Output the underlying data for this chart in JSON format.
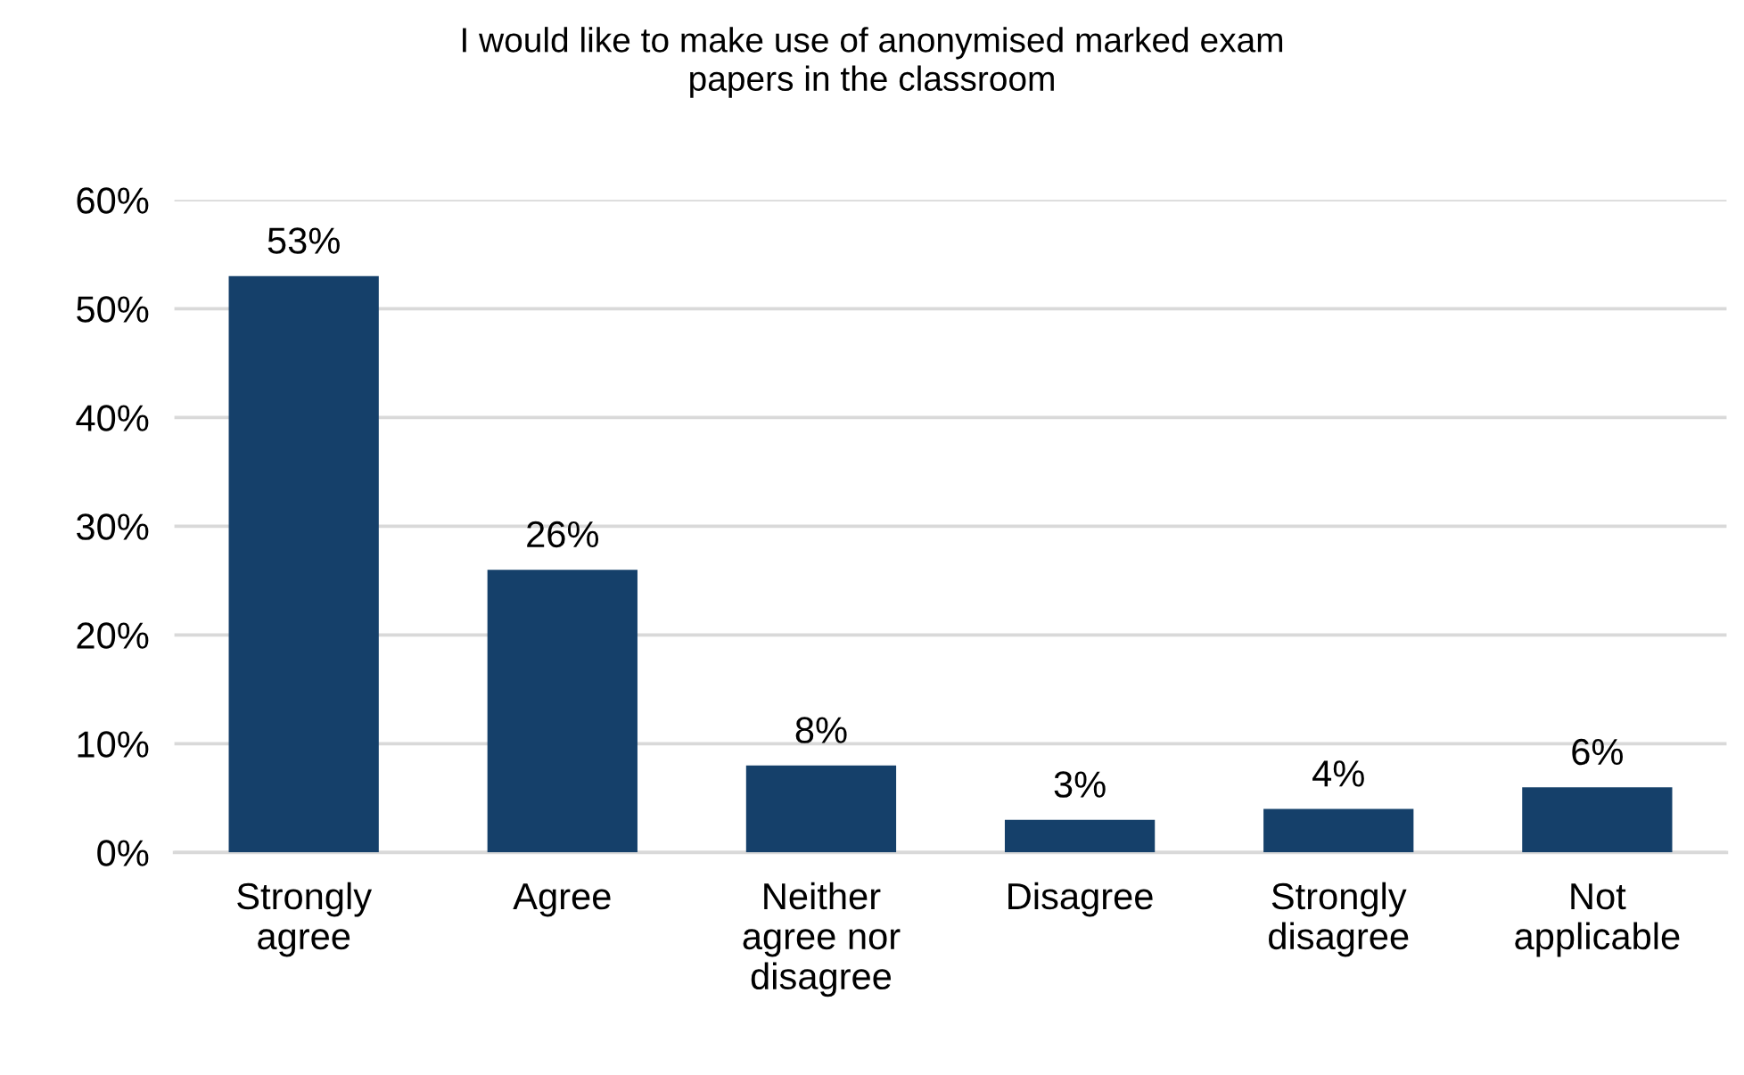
{
  "chart_data": {
    "type": "bar",
    "title": "I would like to make use of anonymised marked exam\npapers in the classroom",
    "categories": [
      "Strongly\nagree",
      "Agree",
      "Neither\nagree nor\ndisagree",
      "Disagree",
      "Strongly\ndisagree",
      "Not\napplicable"
    ],
    "values": [
      53,
      26,
      8,
      3,
      4,
      6
    ],
    "value_labels": [
      "53%",
      "26%",
      "8%",
      "3%",
      "4%",
      "6%"
    ],
    "color": "#15406a",
    "ylim": [
      0,
      60
    ],
    "yticks": [
      {
        "value": 0,
        "label": "0%"
      },
      {
        "value": 10,
        "label": "10%"
      },
      {
        "value": 20,
        "label": "20%"
      },
      {
        "value": 30,
        "label": "30%"
      },
      {
        "value": 40,
        "label": "40%"
      },
      {
        "value": 50,
        "label": "50%"
      },
      {
        "value": 60,
        "label": "60%"
      }
    ],
    "grid": "y"
  }
}
